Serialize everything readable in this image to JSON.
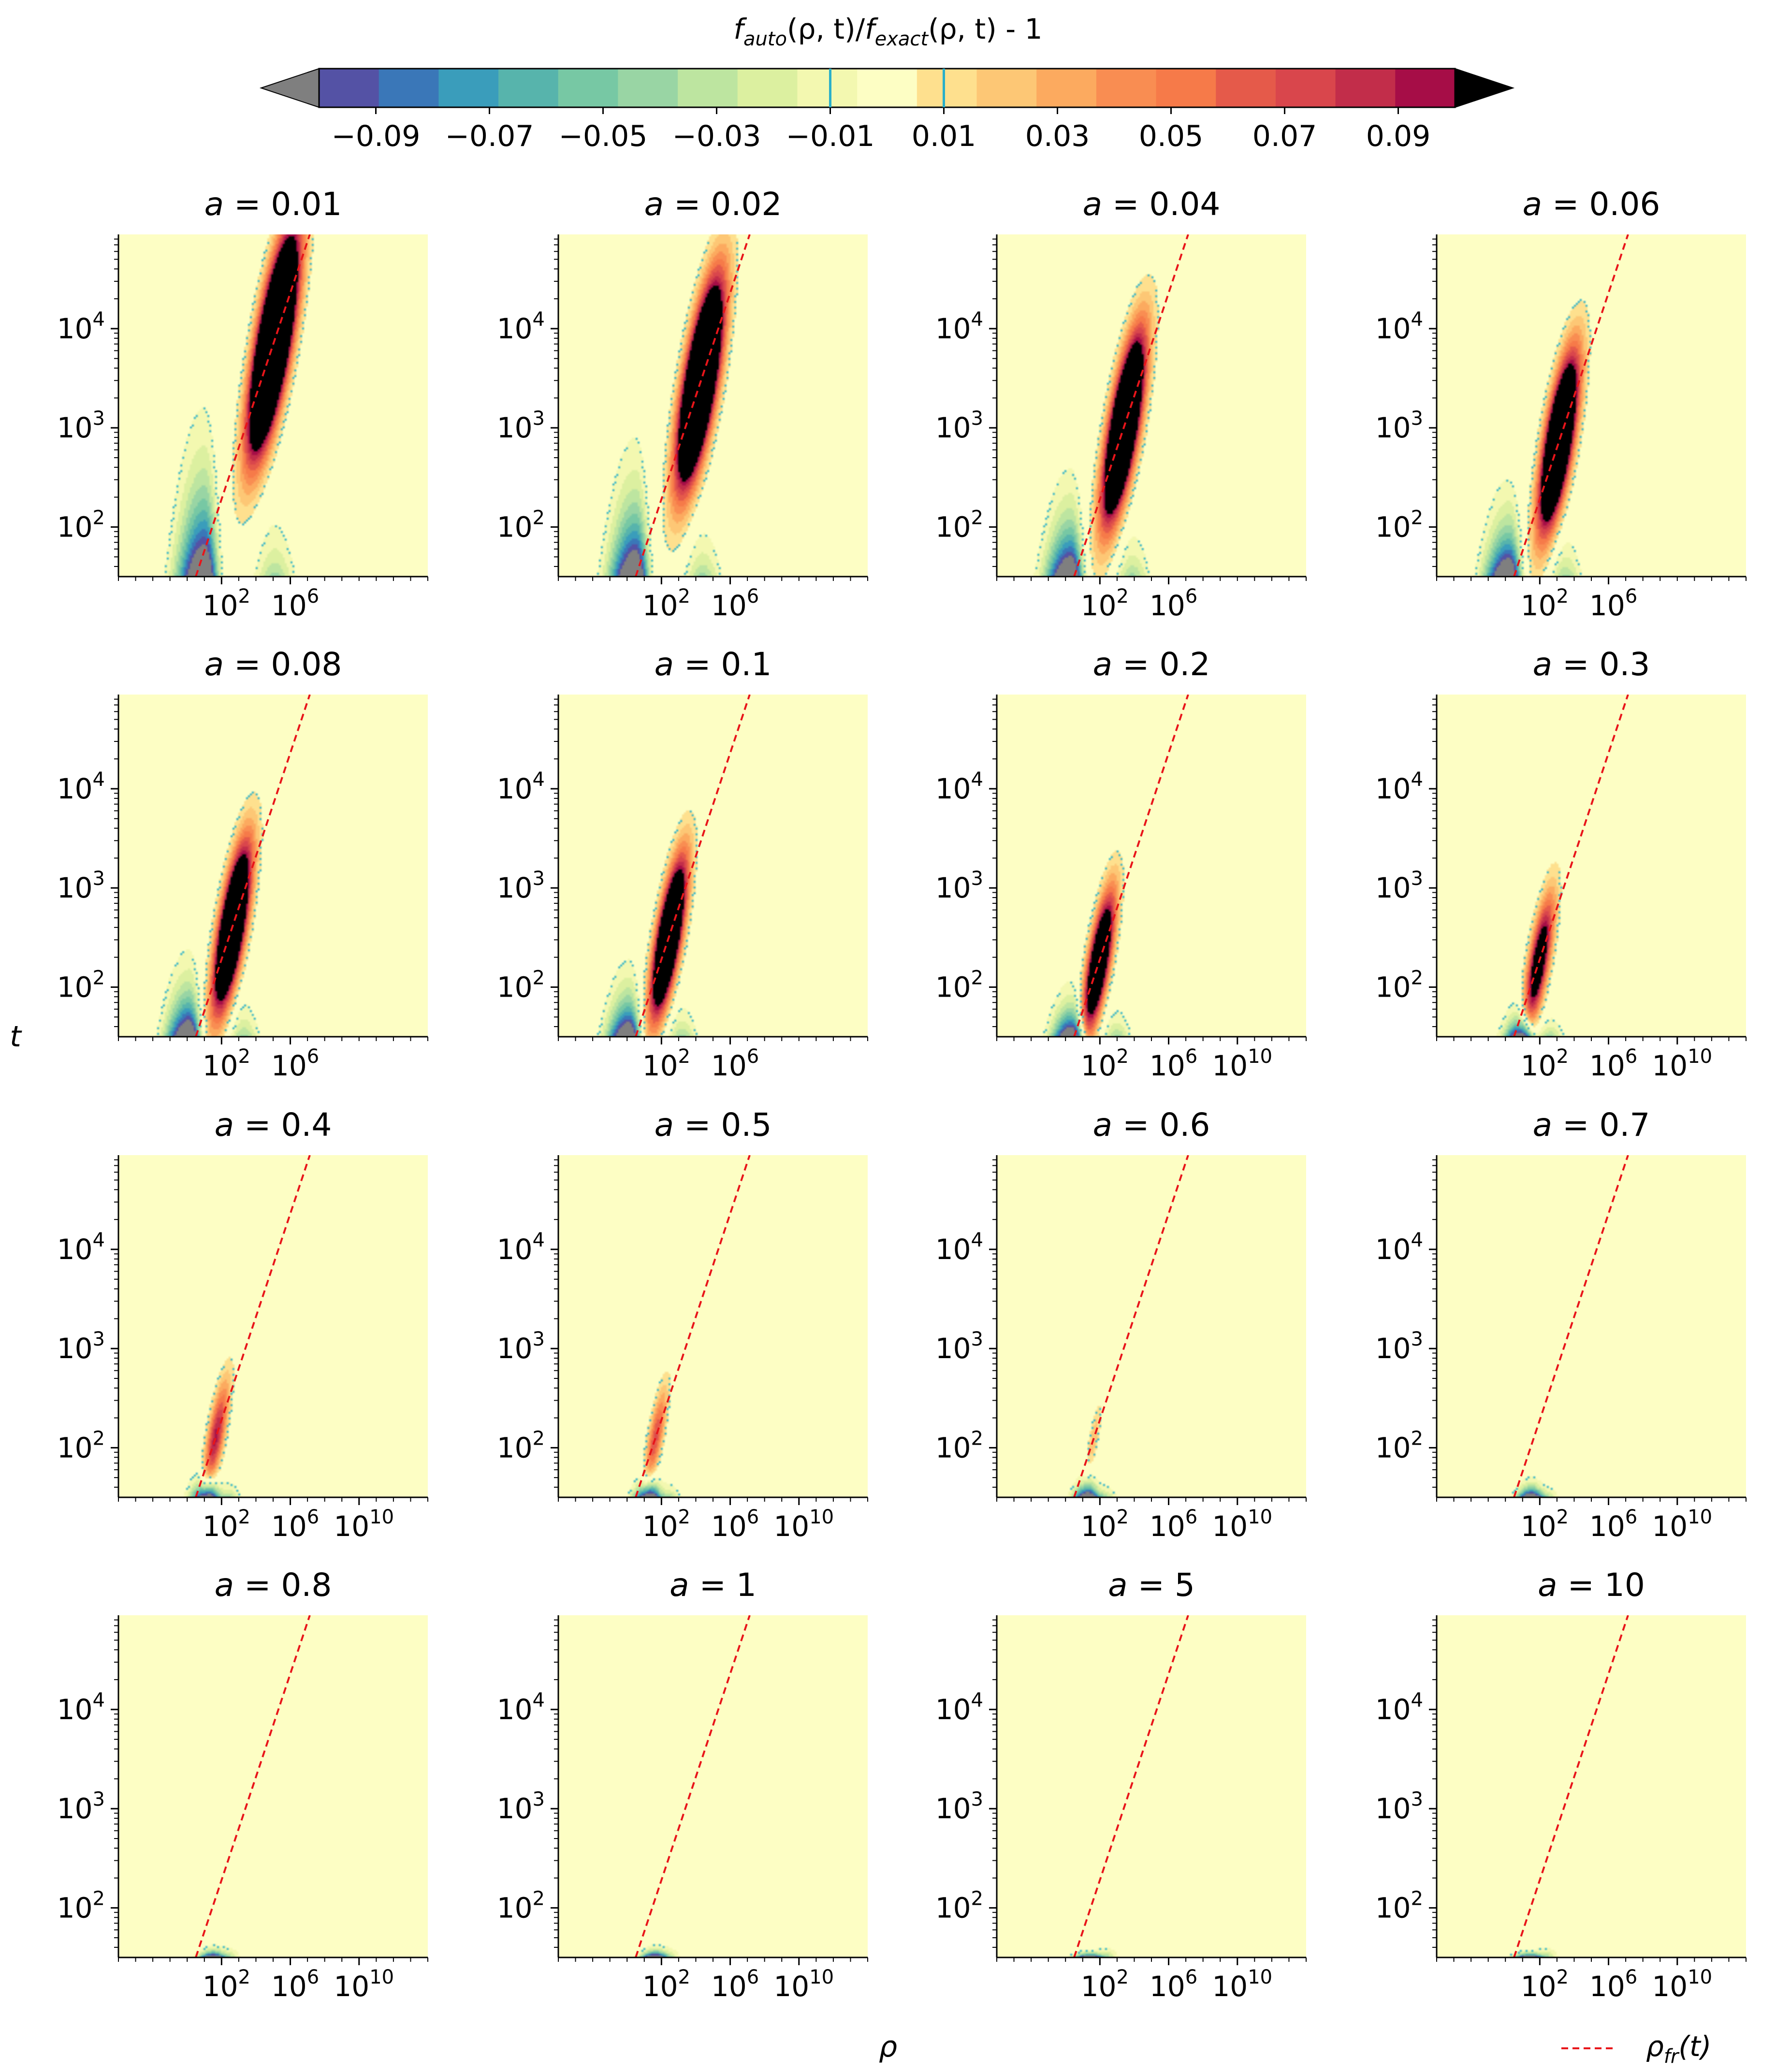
{
  "chart_data": {
    "type": "heatmap",
    "figure_title": "f_auto(ρ, t)/f_exact(ρ, t) - 1",
    "xlabel": "ρ",
    "ylabel": "t",
    "x_scale": "log",
    "y_scale": "log",
    "xlim_log10": [
      -4,
      14
    ],
    "ylim_log10": [
      1.5,
      4.95
    ],
    "x_ticks": [
      {
        "base": "10",
        "exp": "2",
        "log": 2
      },
      {
        "base": "10",
        "exp": "6",
        "log": 6
      },
      {
        "base": "10",
        "exp": "10",
        "log": 10
      }
    ],
    "y_ticks": [
      {
        "base": "10",
        "exp": "2",
        "log": 2
      },
      {
        "base": "10",
        "exp": "3",
        "log": 3
      },
      {
        "base": "10",
        "exp": "4",
        "log": 4
      }
    ],
    "colorbar": {
      "levels": [
        -0.1,
        -0.09,
        -0.08,
        -0.07,
        -0.06,
        -0.05,
        -0.04,
        -0.03,
        -0.02,
        -0.01,
        0.01,
        0.02,
        0.03,
        0.04,
        0.05,
        0.06,
        0.07,
        0.08,
        0.09,
        0.1
      ],
      "colors": [
        "#5452a5",
        "#3a77b8",
        "#3a9dbb",
        "#57b4ac",
        "#77c8a4",
        "#99d5a4",
        "#bde5a0",
        "#dcf0a0",
        "#f3f8b0",
        "#fdfec4",
        "#fee08e",
        "#fdc775",
        "#fcaa5f",
        "#f98d52",
        "#f67a49",
        "#e55a4a",
        "#d9464c",
        "#c22d4a",
        "#a60d47"
      ],
      "under_color": "#7f7f7f",
      "over_color": "#000000",
      "tick_labels": [
        "−0.09",
        "−0.07",
        "−0.05",
        "−0.03",
        "−0.01",
        "0.01",
        "0.03",
        "0.05",
        "0.07",
        "0.09"
      ],
      "tick_values": [
        -0.09,
        -0.07,
        -0.05,
        -0.03,
        -0.01,
        0.01,
        0.03,
        0.05,
        0.07,
        0.09
      ]
    },
    "legend": {
      "label": "ρ_fr(t)",
      "base": "ρ",
      "sub": "fr",
      "suffix": "(t)",
      "style": "dashed red",
      "placement": "bottom-right"
    },
    "fr_line": {
      "log_rho_at_t_min": 0.5,
      "slope_log_t_per_log_rho": 0.52
    },
    "panels": [
      {
        "a_label": "a = 0.01",
        "a": 0.01,
        "max_x_tick": "10^6",
        "pos": {
          "s": 3.15,
          "r": 4.65,
          "tPeak": 3.85,
          "sR": 1.5,
          "sT": 0.56,
          "bR": 0.9,
          "bT": 0.26
        },
        "neg": {
          "r": 1.0,
          "h": 3.15,
          "sL": 2.3,
          "sR": 1.1
        },
        "lobe": {
          "r": 5.1,
          "t": 1.6,
          "h": 0.7,
          "sR": 1.4
        }
      },
      {
        "a_label": "a = 0.02",
        "a": 0.02,
        "max_x_tick": "10^6",
        "pos": {
          "s": 2.9,
          "r": 4.1,
          "tPeak": 3.45,
          "sR": 1.4,
          "sT": 0.55,
          "bR": 0.85,
          "bT": 0.26
        },
        "neg": {
          "r": 0.5,
          "h": 2.85,
          "sL": 2.2,
          "sR": 1.05
        },
        "lobe": {
          "r": 4.4,
          "t": 1.6,
          "h": 0.6,
          "sR": 1.3
        }
      },
      {
        "a_label": "a = 0.04",
        "a": 0.04,
        "max_x_tick": "10^6",
        "pos": {
          "s": 2.6,
          "r": 3.7,
          "tPeak": 3.0,
          "sR": 1.3,
          "sT": 0.5,
          "bR": 0.75,
          "bT": 0.24
        },
        "neg": {
          "r": 0.3,
          "h": 2.55,
          "sL": 2.1,
          "sR": 1.0
        },
        "lobe": {
          "r": 3.9,
          "t": 1.6,
          "h": 0.55,
          "sR": 1.2
        }
      },
      {
        "a_label": "a = 0.06",
        "a": 0.06,
        "max_x_tick": "10^6",
        "pos": {
          "s": 2.5,
          "r": 3.3,
          "tPeak": 2.85,
          "sR": 1.2,
          "sT": 0.48,
          "bR": 0.65,
          "bT": 0.22
        },
        "neg": {
          "r": 0.2,
          "h": 2.45,
          "sL": 2.0,
          "sR": 1.0
        },
        "lobe": {
          "r": 3.5,
          "t": 1.6,
          "h": 0.5,
          "sR": 1.15
        }
      },
      {
        "a_label": "a = 0.08",
        "a": 0.08,
        "max_x_tick": "10^6",
        "pos": {
          "s": 2.4,
          "r": 3.2,
          "tPeak": 2.6,
          "sR": 1.15,
          "sT": 0.45,
          "bR": 0.6,
          "bT": 0.2
        },
        "neg": {
          "r": 0.1,
          "h": 2.35,
          "sL": 1.9,
          "sR": 0.95
        },
        "lobe": {
          "r": 3.3,
          "t": 1.6,
          "h": 0.45,
          "sR": 1.1
        }
      },
      {
        "a_label": "a = 0.1",
        "a": 0.1,
        "max_x_tick": "10^6",
        "pos": {
          "s": 2.3,
          "r": 3.1,
          "tPeak": 2.5,
          "sR": 1.1,
          "sT": 0.42,
          "bR": 0.55,
          "bT": 0.18
        },
        "neg": {
          "r": 0.1,
          "h": 2.25,
          "sL": 1.8,
          "sR": 0.95
        },
        "lobe": {
          "r": 3.2,
          "t": 1.6,
          "h": 0.4,
          "sR": 1.1
        }
      },
      {
        "a_label": "a = 0.2",
        "a": 0.2,
        "max_x_tick": "10^10",
        "pos": {
          "s": 1.8,
          "r": 2.8,
          "tPeak": 2.25,
          "sR": 1.0,
          "sT": 0.38,
          "bR": 0.4,
          "bT": 0.14
        },
        "neg": {
          "r": 0.4,
          "h": 2.05,
          "sL": 1.7,
          "sR": 1.0
        },
        "lobe": {
          "r": 3.0,
          "t": 1.6,
          "h": 0.35,
          "sR": 1.0
        }
      },
      {
        "a_label": "a = 0.3",
        "a": 0.3,
        "max_x_tick": "10^10",
        "pos": {
          "s": 1.3,
          "r": 2.7,
          "tPeak": 2.25,
          "sR": 0.95,
          "sT": 0.36,
          "bR": 0.3,
          "bT": 0.1
        },
        "neg": {
          "r": 1.0,
          "h": 1.9,
          "sL": 1.5,
          "sR": 0.9
        },
        "lobe": {
          "r": 2.6,
          "t": 1.6,
          "h": 0.25,
          "sR": 1.0
        }
      },
      {
        "a_label": "a = 0.4",
        "a": 0.4,
        "max_x_tick": "10^10",
        "pos": {
          "s": 0.85,
          "r": 2.6,
          "tPeak": 2.1,
          "sR": 0.85,
          "sT": 0.3,
          "bR": 0,
          "bT": 0
        },
        "neg": {
          "r": 1.2,
          "h": 1.85,
          "sL": 1.4,
          "sR": 0.9
        },
        "lobe": {
          "r": 2.4,
          "t": 1.6,
          "h": 0.2,
          "sR": 0.9
        }
      },
      {
        "a_label": "a = 0.5",
        "a": 0.5,
        "max_x_tick": "10^10",
        "pos": {
          "s": 0.65,
          "r": 2.7,
          "tPeak": 2.1,
          "sR": 0.75,
          "sT": 0.26,
          "bR": 0,
          "bT": 0
        },
        "neg": {
          "r": 1.3,
          "h": 1.8,
          "sL": 1.3,
          "sR": 0.9
        },
        "lobe": {
          "r": 2.4,
          "t": 1.6,
          "h": 0.18,
          "sR": 0.9
        }
      },
      {
        "a_label": "a = 0.6",
        "a": 0.6,
        "max_x_tick": "10^10",
        "pos": {
          "s": 0.25,
          "r": 2.7,
          "tPeak": 2.1,
          "sR": 0.5,
          "sT": 0.18,
          "bR": 0,
          "bT": 0
        },
        "neg": {
          "r": 1.3,
          "h": 1.75,
          "sL": 1.2,
          "sR": 0.9
        },
        "lobe": {
          "r": 2.3,
          "t": 1.6,
          "h": 0.15,
          "sR": 0.85
        }
      },
      {
        "a_label": "a = 0.7",
        "a": 0.7,
        "max_x_tick": "10^10",
        "pos": {
          "s": 0.0,
          "r": 2.7,
          "tPeak": 2.1,
          "sR": 0.4,
          "sT": 0.15,
          "bR": 0,
          "bT": 0
        },
        "neg": {
          "r": 1.5,
          "h": 1.7,
          "sL": 1.2,
          "sR": 0.9
        },
        "lobe": {
          "r": 2.4,
          "t": 1.6,
          "h": 0.14,
          "sR": 0.85
        }
      },
      {
        "a_label": "a = 0.8",
        "a": 0.8,
        "max_x_tick": "10^10",
        "pos": {
          "s": 0.0,
          "r": 2.7,
          "tPeak": 2.1,
          "sR": 0.4,
          "sT": 0.15,
          "bR": 0,
          "bT": 0
        },
        "neg": {
          "r": 1.5,
          "h": 1.62,
          "sL": 1.2,
          "sR": 0.9
        },
        "lobe": {
          "r": 2.4,
          "t": 1.6,
          "h": 0.13,
          "sR": 0.85
        }
      },
      {
        "a_label": "a = 1",
        "a": 1,
        "max_x_tick": "10^10",
        "pos": {
          "s": 0.0,
          "r": 2.7,
          "tPeak": 2.1,
          "sR": 0.4,
          "sT": 0.15,
          "bR": 0,
          "bT": 0
        },
        "neg": {
          "r": 1.6,
          "h": 1.62,
          "sL": 1.2,
          "sR": 0.9
        },
        "lobe": {
          "r": 2.4,
          "t": 1.6,
          "h": 0.13,
          "sR": 0.85
        }
      },
      {
        "a_label": "a = 5",
        "a": 5,
        "max_x_tick": "10^10",
        "pos": {
          "s": 0.0,
          "r": 2.7,
          "tPeak": 2.1,
          "sR": 0.4,
          "sT": 0.15,
          "bR": 0,
          "bT": 0
        },
        "neg": {
          "r": 1.4,
          "h": 1.58,
          "sL": 1.3,
          "sR": 1.0
        },
        "lobe": {
          "r": 2.4,
          "t": 1.6,
          "h": 0.13,
          "sR": 0.85
        }
      },
      {
        "a_label": "a = 10",
        "a": 10,
        "max_x_tick": "10^10",
        "pos": {
          "s": 0.0,
          "r": 2.7,
          "tPeak": 2.1,
          "sR": 0.4,
          "sT": 0.15,
          "bR": 0,
          "bT": 0
        },
        "neg": {
          "r": 1.4,
          "h": 1.58,
          "sL": 1.3,
          "sR": 1.0
        },
        "lobe": {
          "r": 2.4,
          "t": 1.6,
          "h": 0.13,
          "sR": 0.85
        }
      }
    ]
  }
}
